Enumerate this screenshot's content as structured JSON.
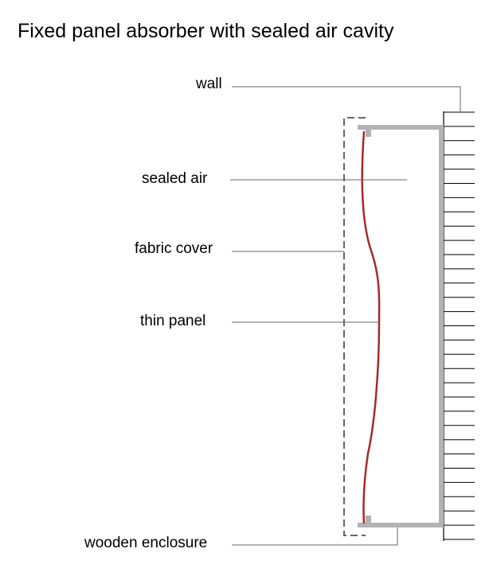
{
  "title": "Fixed panel absorber with sealed air cavity",
  "labels": {
    "wall": "wall",
    "sealed_air": "sealed air",
    "fabric_cover": "fabric cover",
    "thin_panel": "thin panel",
    "wooden_enclosure": "wooden enclosure"
  },
  "colors": {
    "panel": "#a52a2a",
    "enclosure": "#b3b3b3",
    "fabric": "#666666",
    "leader": "#666666",
    "wall_lines": "#000000"
  }
}
